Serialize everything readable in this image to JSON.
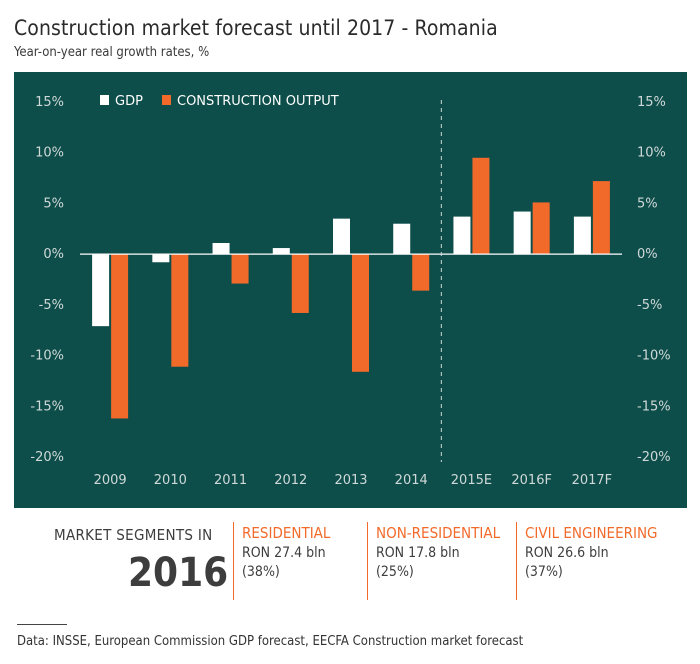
{
  "title": "Construction market forecast until 2017 - Romania",
  "subtitle": "Year-on-year real growth rates, %",
  "colors": {
    "panel": "#0d4d4a",
    "gdp": "#ffffff",
    "construction": "#f26a2a",
    "axis_text": "#cfd9d8"
  },
  "chart_data": {
    "type": "bar",
    "categories": [
      "2009",
      "2010",
      "2011",
      "2012",
      "2013",
      "2014",
      "2015E",
      "2016F",
      "2017F"
    ],
    "series": [
      {
        "name": "GDP",
        "values": [
          -7.1,
          -0.8,
          1.1,
          0.6,
          3.5,
          3.0,
          3.7,
          4.2,
          3.7
        ]
      },
      {
        "name": "CONSTRUCTION OUTPUT",
        "values": [
          -16.2,
          -11.1,
          -2.9,
          -5.8,
          -11.6,
          -3.6,
          9.5,
          5.1,
          7.2
        ]
      }
    ],
    "ylim": [
      -20,
      15
    ],
    "yticks": [
      -20,
      -15,
      -10,
      -5,
      0,
      5,
      10,
      15
    ],
    "ytick_labels": [
      "-20%",
      "-15%",
      "-10%",
      "-5%",
      "0%",
      "5%",
      "10%",
      "15%"
    ],
    "forecast_divider_after": "2014",
    "legend_position": "top-left"
  },
  "segments": {
    "heading": "MARKET SEGMENTS IN",
    "year": "2016",
    "items": [
      {
        "name": "RESIDENTIAL",
        "value": "RON 27.4 bln",
        "share": "(38%)"
      },
      {
        "name": "NON-RESIDENTIAL",
        "value": "RON 17.8 bln",
        "share": "(25%)"
      },
      {
        "name": "CIVIL ENGINEERING",
        "value": "RON 26.6 bln",
        "share": "(37%)"
      }
    ]
  },
  "source": "Data: INSSE, European Commission GDP forecast, EECFA Construction market forecast"
}
